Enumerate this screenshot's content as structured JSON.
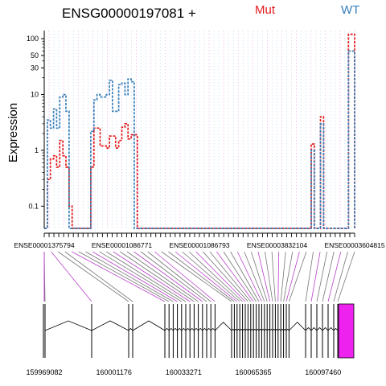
{
  "chart_data": {
    "type": "line",
    "title": "ENSG00000197081 +",
    "ylabel": "Expression",
    "xlabel": "",
    "y_scale": "log",
    "ylim": [
      0.04,
      140
    ],
    "y_ticks": [
      {
        "value": 0.1,
        "label": "0.1"
      },
      {
        "value": 1,
        "label": "1"
      },
      {
        "value": 10,
        "label": "10"
      },
      {
        "value": 30,
        "label": "30"
      },
      {
        "value": 50,
        "label": "50"
      },
      {
        "value": 100,
        "label": "100"
      }
    ],
    "legend": {
      "placement": "top-right",
      "entries": [
        {
          "name": "Mut",
          "color": "#e41a1c"
        },
        {
          "name": "WT",
          "color": "#377eb8"
        }
      ]
    },
    "grid": true,
    "x_range": [
      0,
      100
    ],
    "x_tick_labels": [
      {
        "x": 0,
        "label": "ENSE00001375794"
      },
      {
        "x": 25,
        "label": "ENSE00001086771"
      },
      {
        "x": 50,
        "label": "ENSE00001086793"
      },
      {
        "x": 75,
        "label": "ENSE00003832104"
      },
      {
        "x": 100,
        "label": "ENSE00003604815"
      }
    ],
    "series": [
      {
        "name": "Mut",
        "color": "#e41a1c",
        "values": [
          [
            0,
            0.04
          ],
          [
            1,
            0.3
          ],
          [
            2,
            0.7
          ],
          [
            3,
            0.8
          ],
          [
            4,
            0.5
          ],
          [
            5,
            1.5
          ],
          [
            6,
            0.8
          ],
          [
            7,
            0.5
          ],
          [
            8,
            0.1
          ],
          [
            9,
            0.04
          ],
          [
            15,
            0.5
          ],
          [
            16,
            2.5
          ],
          [
            18,
            1.2
          ],
          [
            20,
            1.1
          ],
          [
            21,
            1.8
          ],
          [
            23,
            1.1
          ],
          [
            24,
            1.5
          ],
          [
            25,
            2.6
          ],
          [
            26,
            3.0
          ],
          [
            27,
            1.6
          ],
          [
            28,
            1.9
          ],
          [
            30,
            0.04
          ],
          [
            86,
            1.3
          ],
          [
            87,
            0.04
          ],
          [
            89,
            4.0
          ],
          [
            90,
            0.04
          ],
          [
            98,
            120
          ],
          [
            100,
            0.04
          ]
        ]
      },
      {
        "name": "WT",
        "color": "#377eb8",
        "values": [
          [
            0,
            0.04
          ],
          [
            1,
            3.5
          ],
          [
            2,
            2.5
          ],
          [
            3,
            5.5
          ],
          [
            4,
            2.5
          ],
          [
            5,
            9.0
          ],
          [
            6,
            10.0
          ],
          [
            7,
            5.0
          ],
          [
            8,
            0.04
          ],
          [
            15,
            2.2
          ],
          [
            16,
            8.0
          ],
          [
            17,
            10.0
          ],
          [
            18,
            9.0
          ],
          [
            20,
            10.0
          ],
          [
            21,
            18.0
          ],
          [
            22,
            5.0
          ],
          [
            24,
            15.0
          ],
          [
            25,
            16.0
          ],
          [
            26,
            10.0
          ],
          [
            27,
            19.0
          ],
          [
            28,
            17.0
          ],
          [
            29,
            0.04
          ],
          [
            86,
            1.0
          ],
          [
            87,
            0.04
          ],
          [
            89,
            3.0
          ],
          [
            90,
            0.04
          ],
          [
            98,
            60
          ],
          [
            100,
            0.04
          ]
        ]
      }
    ],
    "gene_track": {
      "genomic_range": [
        159969082,
        160112000
      ],
      "tick_labels": [
        {
          "value": 159969082,
          "label": "159969082"
        },
        {
          "value": 160001176,
          "label": "160001176"
        },
        {
          "value": 160033271,
          "label": "160033271"
        },
        {
          "value": 160065365,
          "label": "160065365"
        },
        {
          "value": 160097460,
          "label": "160097460"
        }
      ],
      "highlight_color": "#ee22ee"
    }
  }
}
